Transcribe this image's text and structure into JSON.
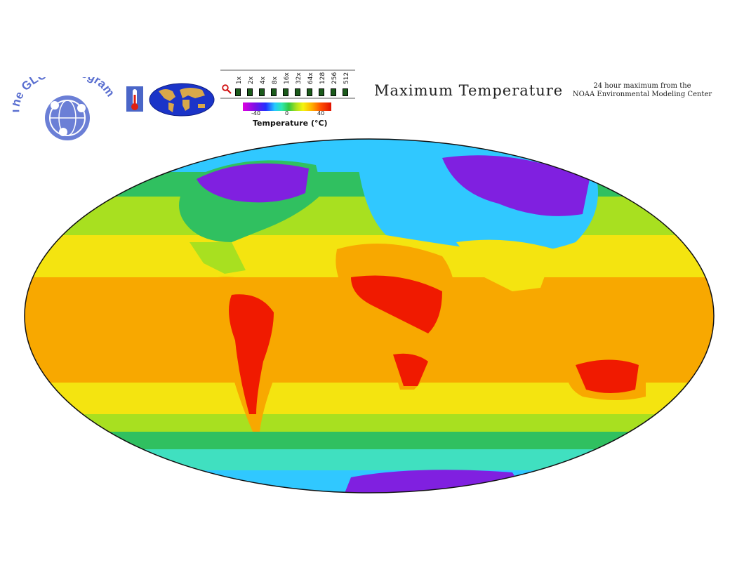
{
  "header": {
    "logo_text": "The GLOBE Program",
    "thermometer_icon": "thermometer-icon",
    "globe_icon": "globe-icon",
    "zoom_icon": "magnifier-icon",
    "zoom_levels": [
      "1x",
      "2x",
      "4x",
      "8x",
      "16x",
      "32x",
      "64x",
      "128",
      "256",
      "512"
    ],
    "title": "Maximum Temperature",
    "subtitle_line1": "24 hour maximum from the",
    "subtitle_line2": "NOAA Environmental Modeling Center"
  },
  "legend": {
    "ticks": [
      "-40",
      "0",
      "40"
    ],
    "label": "Temperature (°C)",
    "colors": [
      "#e000e0",
      "#7a10e6",
      "#2230ff",
      "#25c8ff",
      "#2ee8b0",
      "#32c840",
      "#a8e020",
      "#f4f410",
      "#ffb000",
      "#ff5000",
      "#e01000"
    ]
  },
  "map": {
    "projection": "Mollweide",
    "colors": {
      "ocean_tropics": "#f8a800",
      "ocean_subtropics": "#f4e410",
      "ocean_midlat": "#a8e020",
      "ocean_cool": "#30c060",
      "cold_water": "#40e0c0",
      "polar": "#30c8ff",
      "very_cold": "#8020e0",
      "hot_land": "#f01a00"
    }
  }
}
